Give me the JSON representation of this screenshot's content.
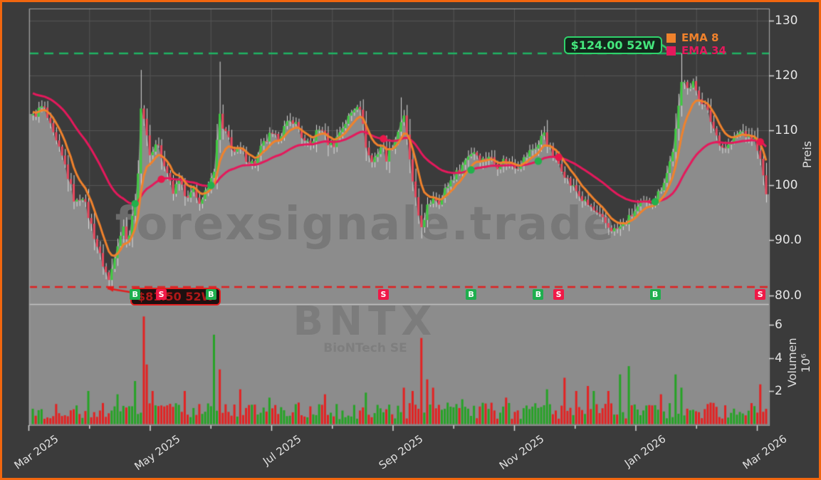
{
  "meta": {
    "watermark_main": "forexsignale.trade",
    "watermark_symbol": "BNTX",
    "watermark_company": "BioNTech SE"
  },
  "colors": {
    "background": "#3b3b3b",
    "panel_gray": "#8c8c8c",
    "grid": "#555555",
    "spine": "#9e9e9e",
    "tick_mark": "#d8d8d8",
    "candle_up": "#3ecb40",
    "candle_down": "#e8495f",
    "wick": "#dcdcdc",
    "ema8": "#f0822c",
    "ema34": "#e4195c",
    "volume_up": "#26a326",
    "volume_down": "#e32222",
    "level_high_line": "#1fb463",
    "level_high_text": "#45e87d",
    "level_low_line": "#e02020",
    "level_low_text": "#b01818",
    "badge_buy": "#1fae4e",
    "badge_sell": "#ef1947",
    "frame_border": "#f1660f",
    "dot_buy": "#22b14c",
    "dot_sell": "#e8174a"
  },
  "legend": [
    {
      "label": "EMA 8",
      "color": "#f0822c"
    },
    {
      "label": "EMA 34",
      "color": "#e4195c"
    }
  ],
  "levels": {
    "high": {
      "label": "$124.00 52W",
      "price": 124.0
    },
    "low": {
      "label": "$81.50 52W",
      "price": 81.5
    }
  },
  "axes": {
    "price_label": "Preis",
    "volume_label": "Volumen",
    "volume_scale_label": "10⁶",
    "price_ticks": [
      {
        "label": "130",
        "price": 130
      },
      {
        "label": "120",
        "price": 120
      },
      {
        "label": "110",
        "price": 110
      },
      {
        "label": "100",
        "price": 100
      },
      {
        "label": "90.0",
        "price": 90
      },
      {
        "label": "80.0",
        "price": 80
      }
    ],
    "volume_ticks": [
      {
        "label": "6",
        "value": 6
      },
      {
        "label": "4",
        "value": 4
      },
      {
        "label": "2",
        "value": 2
      }
    ],
    "x_ticks": [
      {
        "label": "Mar 2025",
        "month": 0,
        "major": true
      },
      {
        "label": "",
        "month": 1,
        "major": false
      },
      {
        "label": "May 2025",
        "month": 2,
        "major": true
      },
      {
        "label": "",
        "month": 3,
        "major": false
      },
      {
        "label": "Jul 2025",
        "month": 4,
        "major": true
      },
      {
        "label": "",
        "month": 5,
        "major": false
      },
      {
        "label": "Sep 2025",
        "month": 6,
        "major": true
      },
      {
        "label": "",
        "month": 7,
        "major": false
      },
      {
        "label": "Nov 2025",
        "month": 8,
        "major": true
      },
      {
        "label": "",
        "month": 9,
        "major": false
      },
      {
        "label": "Jan 2026",
        "month": 10,
        "major": true
      },
      {
        "label": "",
        "month": 11,
        "major": false
      },
      {
        "label": "Mar 2026",
        "month": 12,
        "major": true
      }
    ]
  },
  "signals": [
    {
      "type": "B",
      "t": 0.141
    },
    {
      "type": "S",
      "t": 0.176
    },
    {
      "type": "B",
      "t": 0.245
    },
    {
      "type": "S",
      "t": 0.478
    },
    {
      "type": "B",
      "t": 0.596
    },
    {
      "type": "B",
      "t": 0.689
    },
    {
      "type": "S",
      "t": 0.716
    },
    {
      "type": "B",
      "t": 0.849
    },
    {
      "type": "S",
      "t": 0.993
    }
  ],
  "chart_data": {
    "type": "candlestick+volume",
    "x_range": [
      "Mar 2025",
      "Mar 2026"
    ],
    "price_axis": {
      "ticks": [
        80,
        90,
        100,
        110,
        120,
        130
      ],
      "label": "Preis"
    },
    "volume_axis": {
      "ticks": [
        2,
        4,
        6
      ],
      "unit": "10^6",
      "label": "Volumen"
    },
    "candle_count": 252,
    "high_52w": 124.0,
    "low_52w": 81.5,
    "emas": [
      {
        "period": 8,
        "color": "#f0822c",
        "start": 113.5
      },
      {
        "period": 34,
        "color": "#e4195c",
        "start": 117.0
      }
    ],
    "price_path": [
      [
        0,
        112.5
      ],
      [
        0.014,
        114.5
      ],
      [
        0.028,
        109
      ],
      [
        0.043,
        104
      ],
      [
        0.058,
        96.5
      ],
      [
        0.067,
        98.5
      ],
      [
        0.079,
        93
      ],
      [
        0.092,
        87
      ],
      [
        0.104,
        82.5
      ],
      [
        0.114,
        89
      ],
      [
        0.123,
        92.5
      ],
      [
        0.13,
        90
      ],
      [
        0.138,
        96
      ],
      [
        0.145,
        103
      ],
      [
        0.148,
        117.5
      ],
      [
        0.153,
        110
      ],
      [
        0.161,
        105
      ],
      [
        0.169,
        108.5
      ],
      [
        0.178,
        103.5
      ],
      [
        0.187,
        101
      ],
      [
        0.192,
        98.5
      ],
      [
        0.199,
        102
      ],
      [
        0.206,
        99
      ],
      [
        0.214,
        97.5
      ],
      [
        0.22,
        100.5
      ],
      [
        0.226,
        96.5
      ],
      [
        0.233,
        98
      ],
      [
        0.241,
        100
      ],
      [
        0.249,
        104
      ],
      [
        0.254,
        113.5
      ],
      [
        0.259,
        110
      ],
      [
        0.267,
        108.5
      ],
      [
        0.274,
        106
      ],
      [
        0.282,
        106.5
      ],
      [
        0.292,
        104.8
      ],
      [
        0.302,
        103.8
      ],
      [
        0.312,
        107
      ],
      [
        0.323,
        109
      ],
      [
        0.333,
        108.5
      ],
      [
        0.343,
        110.5
      ],
      [
        0.354,
        112
      ],
      [
        0.362,
        110.5
      ],
      [
        0.37,
        107.8
      ],
      [
        0.378,
        107.2
      ],
      [
        0.386,
        109.5
      ],
      [
        0.394,
        110.5
      ],
      [
        0.401,
        108
      ],
      [
        0.409,
        107.2
      ],
      [
        0.419,
        110
      ],
      [
        0.429,
        112
      ],
      [
        0.438,
        114
      ],
      [
        0.445,
        115.5
      ],
      [
        0.453,
        108
      ],
      [
        0.461,
        104
      ],
      [
        0.468,
        105.5
      ],
      [
        0.476,
        107.5
      ],
      [
        0.482,
        105
      ],
      [
        0.489,
        107
      ],
      [
        0.497,
        109.5
      ],
      [
        0.505,
        113
      ],
      [
        0.512,
        107
      ],
      [
        0.519,
        99
      ],
      [
        0.526,
        94.5
      ],
      [
        0.532,
        92
      ],
      [
        0.538,
        96
      ],
      [
        0.546,
        98
      ],
      [
        0.556,
        97
      ],
      [
        0.563,
        99.5
      ],
      [
        0.573,
        101.5
      ],
      [
        0.583,
        103
      ],
      [
        0.593,
        105.5
      ],
      [
        0.602,
        106.3
      ],
      [
        0.612,
        104.5
      ],
      [
        0.622,
        105.5
      ],
      [
        0.632,
        103.5
      ],
      [
        0.641,
        104.5
      ],
      [
        0.651,
        104
      ],
      [
        0.661,
        103.5
      ],
      [
        0.671,
        105
      ],
      [
        0.68,
        106.5
      ],
      [
        0.69,
        107.5
      ],
      [
        0.697,
        110
      ],
      [
        0.7,
        108
      ],
      [
        0.707,
        106
      ],
      [
        0.714,
        104.5
      ],
      [
        0.722,
        103
      ],
      [
        0.731,
        100.5
      ],
      [
        0.741,
        99
      ],
      [
        0.751,
        97
      ],
      [
        0.761,
        96
      ],
      [
        0.77,
        94.5
      ],
      [
        0.778,
        93.5
      ],
      [
        0.786,
        92.3
      ],
      [
        0.794,
        91.8
      ],
      [
        0.802,
        92.5
      ],
      [
        0.81,
        93.5
      ],
      [
        0.819,
        95
      ],
      [
        0.829,
        96.5
      ],
      [
        0.839,
        97
      ],
      [
        0.849,
        97.5
      ],
      [
        0.856,
        99.5
      ],
      [
        0.864,
        102
      ],
      [
        0.872,
        106
      ],
      [
        0.879,
        112
      ],
      [
        0.884,
        118.5
      ],
      [
        0.889,
        119.5
      ],
      [
        0.895,
        117.5
      ],
      [
        0.901,
        118.5
      ],
      [
        0.907,
        116.5
      ],
      [
        0.914,
        115
      ],
      [
        0.921,
        113
      ],
      [
        0.928,
        110.5
      ],
      [
        0.934,
        108.5
      ],
      [
        0.941,
        106.8
      ],
      [
        0.948,
        107.2
      ],
      [
        0.955,
        108.3
      ],
      [
        0.962,
        109.5
      ],
      [
        0.969,
        109.8
      ],
      [
        0.976,
        108.5
      ],
      [
        0.982,
        108.8
      ],
      [
        0.988,
        107
      ],
      [
        0.994,
        103
      ],
      [
        1,
        98.5
      ]
    ],
    "extremes": [
      {
        "t": 0.104,
        "low": 81.5
      },
      {
        "t": 0.148,
        "high": 121.0,
        "bull": true
      },
      {
        "t": 0.254,
        "high": 122.5,
        "bull": true
      },
      {
        "t": 0.503,
        "high": 116.0
      },
      {
        "t": 0.529,
        "low": 90.4
      },
      {
        "t": 0.886,
        "high": 124.0,
        "bull": true
      }
    ],
    "volume_spikes": [
      [
        0.077,
        2.0,
        "g"
      ],
      [
        0.114,
        1.8,
        "g"
      ],
      [
        0.141,
        2.6,
        "g"
      ],
      [
        0.15,
        6.5,
        "r"
      ],
      [
        0.155,
        3.6,
        "r"
      ],
      [
        0.162,
        2.0,
        "r"
      ],
      [
        0.209,
        2.0,
        "r"
      ],
      [
        0.249,
        5.4,
        "g"
      ],
      [
        0.255,
        3.3,
        "r"
      ],
      [
        0.282,
        2.1,
        "r"
      ],
      [
        0.321,
        1.6,
        "g"
      ],
      [
        0.362,
        1.3,
        "r"
      ],
      [
        0.399,
        1.8,
        "r"
      ],
      [
        0.453,
        1.9,
        "g"
      ],
      [
        0.507,
        2.2,
        "r"
      ],
      [
        0.517,
        2.0,
        "r"
      ],
      [
        0.531,
        5.2,
        "r"
      ],
      [
        0.538,
        2.7,
        "r"
      ],
      [
        0.547,
        2.2,
        "r"
      ],
      [
        0.585,
        1.5,
        "g"
      ],
      [
        0.644,
        1.6,
        "r"
      ],
      [
        0.702,
        2.1,
        "g"
      ],
      [
        0.727,
        2.8,
        "r"
      ],
      [
        0.741,
        2.0,
        "r"
      ],
      [
        0.756,
        2.3,
        "r"
      ],
      [
        0.763,
        2.0,
        "g"
      ],
      [
        0.785,
        2.0,
        "r"
      ],
      [
        0.8,
        3.0,
        "g"
      ],
      [
        0.811,
        3.5,
        "g"
      ],
      [
        0.858,
        1.8,
        "r"
      ],
      [
        0.876,
        3.0,
        "g"
      ],
      [
        0.884,
        2.2,
        "g"
      ],
      [
        0.993,
        2.4,
        "r"
      ]
    ]
  }
}
